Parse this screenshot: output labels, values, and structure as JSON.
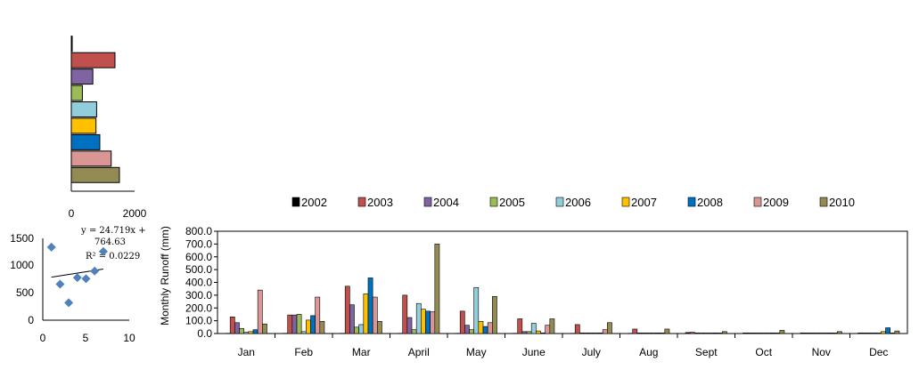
{
  "chart_data": [
    {
      "type": "bar",
      "orientation": "horizontal",
      "categories": [
        "2002",
        "2003",
        "2004",
        "2005",
        "2006",
        "2007",
        "2008",
        "2009",
        "2010"
      ],
      "values": [
        10,
        1380,
        680,
        350,
        800,
        780,
        900,
        1260,
        1520
      ],
      "xlim": [
        0,
        2000
      ],
      "xticks": [
        "0",
        "2000"
      ],
      "colors": [
        "#000000",
        "#c0504d",
        "#8064a2",
        "#9bbb59",
        "#92cddc",
        "#ffc000",
        "#0070c0",
        "#d99694",
        "#948a54"
      ]
    },
    {
      "type": "scatter",
      "points": [
        [
          1,
          1340
        ],
        [
          2,
          660
        ],
        [
          3,
          320
        ],
        [
          4,
          780
        ],
        [
          5,
          760
        ],
        [
          6,
          900
        ],
        [
          7,
          1260
        ]
      ],
      "xlim": [
        0,
        10
      ],
      "ylim": [
        0,
        1500
      ],
      "xticks": [
        "0",
        "5",
        "10"
      ],
      "yticks": [
        "0",
        "500",
        "1000",
        "1500"
      ],
      "trendline": {
        "slope": 24.719,
        "intercept": 764.63
      },
      "equation_lines": [
        "y = 24.719x +",
        "764.63"
      ],
      "r2": "R² = 0.0229",
      "marker_color": "#4f81bd"
    },
    {
      "type": "bar",
      "categories": [
        "Jan",
        "Feb",
        "Mar",
        "April",
        "May",
        "June",
        "July",
        "Aug",
        "Sept",
        "Oct",
        "Nov",
        "Dec"
      ],
      "ylabel": "Monthly  Runoff (mm)",
      "ylim": [
        0,
        800
      ],
      "yticks": [
        "0.0",
        "100.0",
        "200.0",
        "300.0",
        "400.0",
        "500.0",
        "600.0",
        "700.0",
        "800.0"
      ],
      "legend_position": "top",
      "series": [
        {
          "name": "2002",
          "color": "#000000",
          "values": [
            2,
            2,
            2,
            2,
            2,
            2,
            2,
            2,
            8,
            5,
            5,
            5
          ]
        },
        {
          "name": "2003",
          "color": "#c0504d",
          "values": [
            130,
            145,
            370,
            300,
            175,
            115,
            70,
            35,
            10,
            5,
            5,
            5
          ]
        },
        {
          "name": "2004",
          "color": "#8064a2",
          "values": [
            85,
            145,
            225,
            125,
            65,
            15,
            5,
            5,
            5,
            5,
            5,
            5
          ]
        },
        {
          "name": "2005",
          "color": "#9bbb59",
          "values": [
            40,
            150,
            50,
            30,
            30,
            15,
            5,
            5,
            5,
            5,
            5,
            5
          ]
        },
        {
          "name": "2006",
          "color": "#92cddc",
          "values": [
            10,
            15,
            70,
            235,
            360,
            80,
            5,
            5,
            5,
            5,
            5,
            5
          ]
        },
        {
          "name": "2007",
          "color": "#ffc000",
          "values": [
            15,
            105,
            310,
            190,
            95,
            20,
            5,
            5,
            5,
            5,
            5,
            15
          ]
        },
        {
          "name": "2008",
          "color": "#0070c0",
          "values": [
            30,
            140,
            435,
            175,
            55,
            5,
            5,
            5,
            5,
            5,
            5,
            45
          ]
        },
        {
          "name": "2009",
          "color": "#d99694",
          "values": [
            340,
            285,
            285,
            170,
            85,
            65,
            30,
            5,
            5,
            5,
            5,
            5
          ]
        },
        {
          "name": "2010",
          "color": "#948a54",
          "values": [
            75,
            95,
            95,
            700,
            290,
            115,
            85,
            35,
            15,
            25,
            15,
            20
          ]
        }
      ]
    }
  ]
}
